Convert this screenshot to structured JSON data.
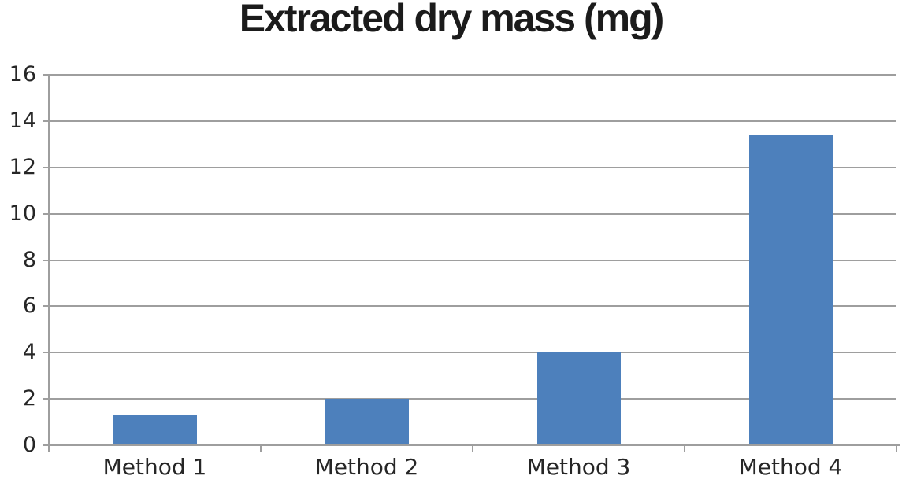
{
  "chart_data": {
    "type": "bar",
    "title": "Extracted dry mass (mg)",
    "categories": [
      "Method 1",
      "Method 2",
      "Method 3",
      "Method 4"
    ],
    "values": [
      1.3,
      2.0,
      4.0,
      13.4
    ],
    "xlabel": "",
    "ylabel": "",
    "ylim": [
      0,
      16
    ],
    "yticks": [
      0,
      2,
      4,
      6,
      8,
      10,
      12,
      14,
      16
    ],
    "grid": "horizontal",
    "legend_position": "none",
    "colors": {
      "bar_fill": "#4d80bc",
      "grid_line": "#9e9e9e",
      "axis_line": "#9e9e9e",
      "title_text": "#1b1b1b",
      "tick_text": "#262626",
      "background": "#ffffff"
    }
  }
}
